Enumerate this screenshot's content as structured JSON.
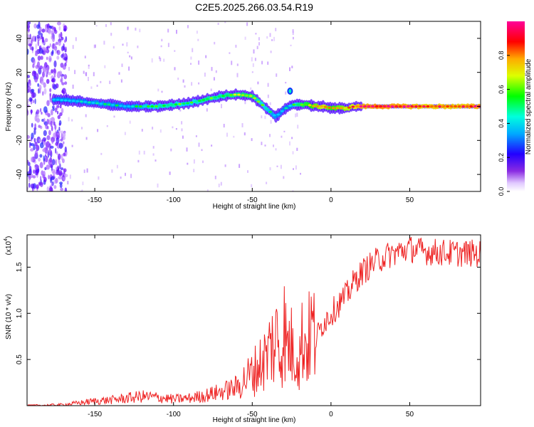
{
  "title": "C2E5.2025.266.03.54.R19",
  "colors": {
    "snr_line": "#ee2222",
    "axis": "#000000",
    "colormap": [
      "#f0e8ff",
      "#c9a8ff",
      "#6a00ff",
      "#0033ff",
      "#00e5ff",
      "#00ff00",
      "#ffff00",
      "#ff8800",
      "#ff0000",
      "#ff0099"
    ]
  },
  "chart_data": [
    {
      "type": "heatmap",
      "name": "spectrogram",
      "xlabel": "Height of straight line (km)",
      "ylabel": "Frequency (Hz)",
      "xlim": [
        -193,
        95
      ],
      "ylim": [
        -50,
        50
      ],
      "xticks": [
        -150,
        -100,
        -50,
        0,
        50
      ],
      "xtick_labels": [
        "-150",
        "-100",
        "-50",
        "0",
        "50"
      ],
      "yticks": [
        -40,
        -20,
        0,
        20,
        40
      ],
      "ytick_labels": [
        "-40",
        "-20",
        "0",
        "20",
        "40"
      ],
      "colorbar": {
        "label": "Normalized spectral amplitude",
        "range": [
          0.0,
          1.0
        ],
        "ticks": [
          0.0,
          0.2,
          0.4,
          0.6,
          0.8
        ],
        "tick_labels": [
          "0.0",
          "0.2",
          "0.4",
          "0.6",
          "0.8"
        ]
      },
      "ridge": {
        "height_km": [
          -175,
          -160,
          -150,
          -140,
          -130,
          -120,
          -110,
          -100,
          -90,
          -80,
          -70,
          -60,
          -50,
          -45,
          -40,
          -35,
          -30,
          -25,
          -20,
          -15,
          -10,
          -5,
          0,
          5,
          10,
          15,
          20,
          30,
          40,
          50,
          60,
          70,
          80,
          90,
          95
        ],
        "frequency_hz": [
          4,
          3,
          2,
          1,
          0,
          0,
          0,
          1,
          2,
          4,
          6,
          7,
          6,
          2,
          -2,
          -6,
          -2,
          1,
          1,
          1,
          0,
          0,
          -1,
          -1,
          -1,
          0,
          0,
          0,
          0,
          0,
          0,
          0,
          0,
          0,
          0
        ],
        "amplitude": [
          0.35,
          0.4,
          0.45,
          0.45,
          0.42,
          0.48,
          0.55,
          0.55,
          0.5,
          0.58,
          0.55,
          0.6,
          0.62,
          0.55,
          0.5,
          0.45,
          0.4,
          0.45,
          0.6,
          0.65,
          0.75,
          0.85,
          0.7,
          0.75,
          0.8,
          0.85,
          0.95,
          1.0,
          0.98,
          0.95,
          0.9,
          0.92,
          0.9,
          0.95,
          0.95
        ]
      }
    },
    {
      "type": "line",
      "name": "snr",
      "xlabel": "Height of straight line (km)",
      "ylabel": "SNR (10 * v/v)",
      "y_multiplier": "(x10",
      "y_multiplier_exp": "4",
      "y_multiplier_close": ")",
      "xlim": [
        -193,
        95
      ],
      "ylim": [
        0,
        18500
      ],
      "xticks": [
        -150,
        -100,
        -50,
        0,
        50
      ],
      "xtick_labels": [
        "-150",
        "-100",
        "-50",
        "0",
        "50"
      ],
      "yticks": [
        5000,
        10000,
        15000
      ],
      "ytick_labels": [
        "0.5",
        "1.0",
        "1.5"
      ],
      "series": [
        {
          "x": [
            -193,
            -180,
            -170,
            -160,
            -150,
            -140,
            -130,
            -120,
            -110,
            -100,
            -90,
            -80,
            -70,
            -60,
            -55,
            -50,
            -45,
            -40,
            -38,
            -36,
            -34,
            -32,
            -30,
            -28,
            -26,
            -24,
            -22,
            -20,
            -18,
            -15,
            -12,
            -10,
            -5,
            0,
            5,
            10,
            15,
            20,
            25,
            30,
            35,
            40,
            45,
            50,
            55,
            60,
            70,
            80,
            90,
            95
          ],
          "y": [
            0,
            50,
            100,
            300,
            500,
            600,
            800,
            1000,
            900,
            700,
            800,
            1100,
            1500,
            2000,
            2800,
            3500,
            4500,
            5500,
            7000,
            6000,
            8000,
            5000,
            9000,
            6000,
            7000,
            5500,
            6500,
            5000,
            7500,
            6500,
            8500,
            7000,
            9000,
            10000,
            11000,
            12000,
            13500,
            14500,
            15200,
            15800,
            16200,
            16500,
            16800,
            17000,
            16800,
            16700,
            16600,
            16500,
            16500,
            16400
          ]
        }
      ]
    }
  ]
}
